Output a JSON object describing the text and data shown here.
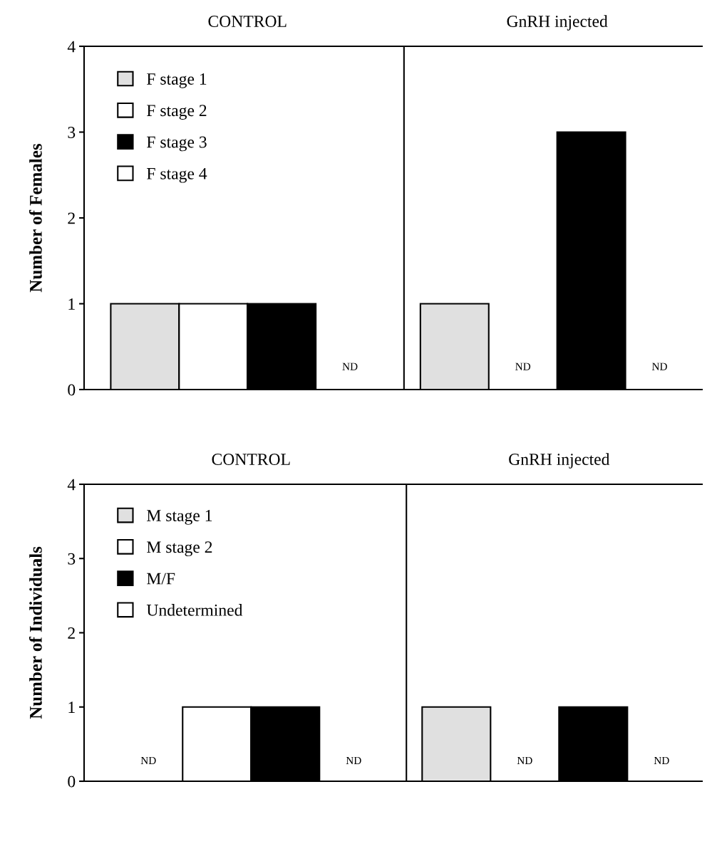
{
  "chart_data": [
    {
      "type": "bar",
      "ylabel": "Number of Females",
      "categories": [
        "CONTROL",
        "GnRH injected"
      ],
      "ylim": [
        0,
        4
      ],
      "yticks": [
        0,
        1,
        2,
        3,
        4
      ],
      "legend": "top left",
      "grid": false,
      "series": [
        {
          "name": "F stage 1",
          "color": "#e0e0e0",
          "values": [
            1,
            1
          ]
        },
        {
          "name": "F stage 2",
          "color": "#ffffff",
          "values": [
            1,
            null
          ]
        },
        {
          "name": "F stage 3",
          "color": "#000000",
          "values": [
            1,
            3
          ]
        },
        {
          "name": "F stage 4",
          "color": "#ffffff",
          "values": [
            null,
            null
          ]
        }
      ],
      "annotations": [
        "ND",
        "ND",
        "ND"
      ]
    },
    {
      "type": "bar",
      "ylabel": "Number of Individuals",
      "categories": [
        "CONTROL",
        "GnRH injected"
      ],
      "ylim": [
        0,
        4
      ],
      "yticks": [
        0,
        1,
        2,
        3,
        4
      ],
      "legend": "top left",
      "grid": false,
      "series": [
        {
          "name": "M stage 1",
          "color": "#e0e0e0",
          "values": [
            null,
            1
          ]
        },
        {
          "name": "M stage 2",
          "color": "#ffffff",
          "values": [
            1,
            null
          ]
        },
        {
          "name": "M/F",
          "color": "#000000",
          "values": [
            1,
            1
          ]
        },
        {
          "name": "Undetermined",
          "color": "#ffffff",
          "values": [
            null,
            null
          ]
        }
      ],
      "annotations": [
        "ND",
        "ND",
        "ND",
        "ND"
      ]
    }
  ]
}
